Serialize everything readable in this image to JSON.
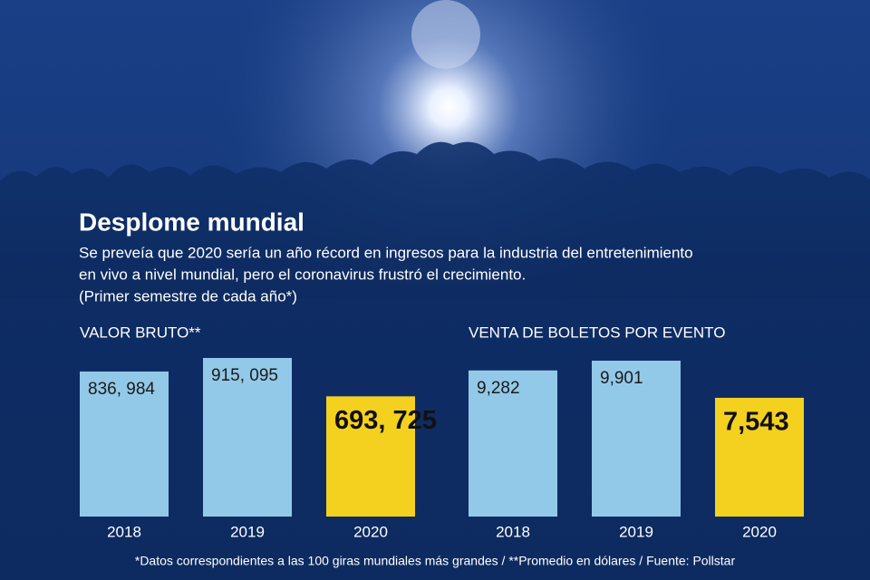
{
  "header": {
    "title": "Desplome mundial",
    "subtitle": [
      "Se preveía que 2020 sería un año récord en ingresos para la industria del entretenimiento",
      "en vivo a nivel mundial, pero el coronavirus frustró el crecimiento."
    ],
    "note": "(Primer semestre de cada año*)"
  },
  "chart_data": [
    {
      "type": "bar",
      "title": "VALOR BRUTO**",
      "categories": [
        "2018",
        "2019",
        "2020"
      ],
      "values": [
        836984,
        915095,
        693725
      ],
      "value_labels": [
        "836, 984",
        "915, 095",
        "693, 725"
      ],
      "colors": [
        "#93c9e8",
        "#93c9e8",
        "#f4d11f"
      ]
    },
    {
      "type": "bar",
      "title": "VENTA DE BOLETOS POR EVENTO",
      "categories": [
        "2018",
        "2019",
        "2020"
      ],
      "values": [
        9282,
        9901,
        7543
      ],
      "value_labels": [
        "9,282",
        "9,901",
        "7,543"
      ],
      "colors": [
        "#93c9e8",
        "#93c9e8",
        "#f4d11f"
      ]
    }
  ],
  "footnote": "*Datos correspondientes a las 100 giras mundiales más grandes / **Promedio en dólares / Fuente: Pollstar"
}
